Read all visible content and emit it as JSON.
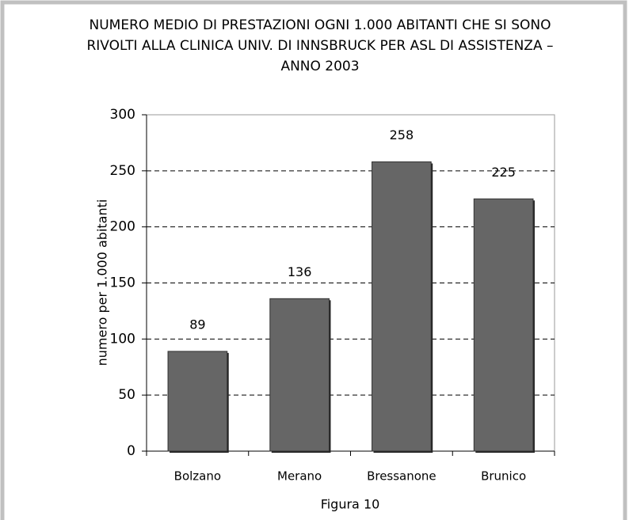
{
  "chart_data": {
    "type": "bar",
    "title": [
      "NUMERO MEDIO  DI PRESTAZIONI OGNI 1.000 ABITANTI CHE SI SONO",
      "RIVOLTI ALLA CLINICA UNIV. DI INNSBRUCK PER ASL DI ASSISTENZA –",
      "ANNO 2003"
    ],
    "y_label": "numero per 1.000 abitanti",
    "caption": "Figura 10",
    "categories": [
      "Bolzano",
      "Merano",
      "Bressanone",
      "Brunico"
    ],
    "values": [
      89,
      136,
      258,
      225
    ],
    "color": "#666666",
    "ylim": [
      0,
      300
    ],
    "yticks": [
      0,
      50,
      100,
      150,
      200,
      250,
      300
    ],
    "grid": true
  }
}
